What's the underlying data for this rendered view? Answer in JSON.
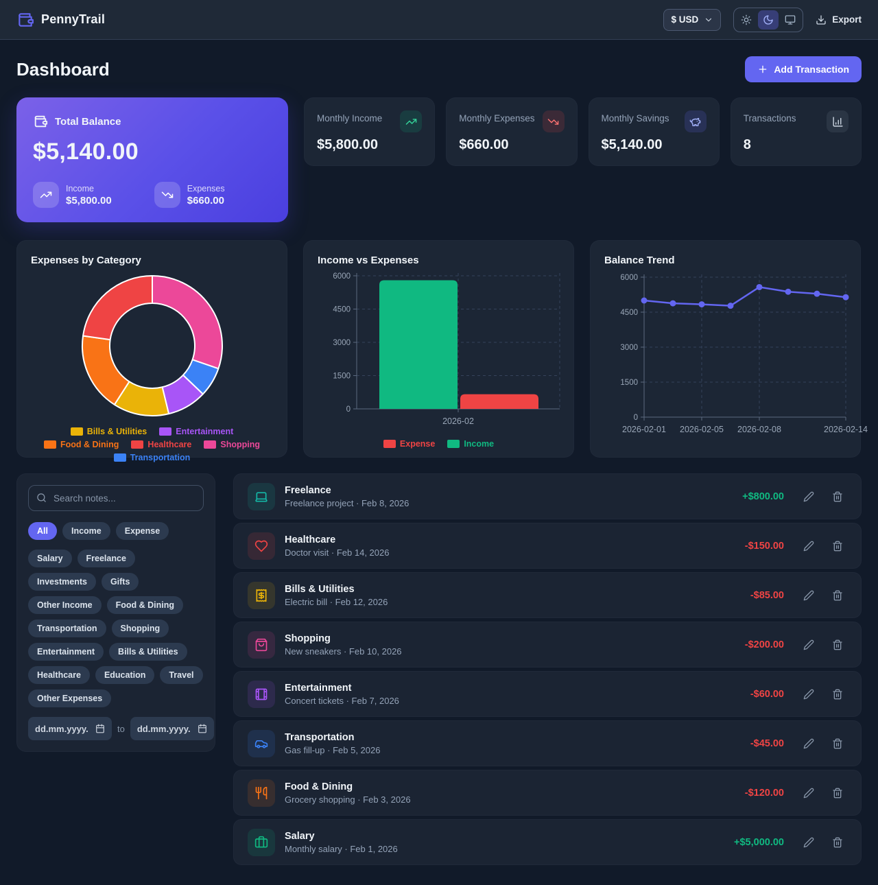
{
  "theme": {
    "accent": "#6366f1",
    "positive": "#10b981",
    "negative": "#ef4444"
  },
  "app": {
    "name": "PennyTrail",
    "logo_icon": "wallet-icon"
  },
  "header": {
    "currency": {
      "value": "$ USD",
      "icon": "chevron-down-icon"
    },
    "theme_toggle": [
      {
        "name": "light",
        "icon": "sun-icon",
        "active": false
      },
      {
        "name": "dark",
        "icon": "moon-icon",
        "active": true
      },
      {
        "name": "system",
        "icon": "monitor-icon",
        "active": false
      }
    ],
    "export_label": "Export",
    "export_icon": "download-icon"
  },
  "page": {
    "title": "Dashboard",
    "add_transaction_label": "Add Transaction",
    "add_icon": "plus-icon"
  },
  "balance_card": {
    "icon": "wallet-icon",
    "title": "Total Balance",
    "value": "$5,140.00",
    "income_label": "Income",
    "income_value": "$5,800.00",
    "income_icon": "trending-up-icon",
    "expenses_label": "Expenses",
    "expenses_value": "$660.00",
    "expenses_icon": "trending-down-icon"
  },
  "stat_cards": [
    {
      "label": "Monthly Income",
      "value": "$5,800.00",
      "icon": "trending-up-icon",
      "accent": "#34d399",
      "tile_bg": "rgba(16,185,129,0.15)"
    },
    {
      "label": "Monthly Expenses",
      "value": "$660.00",
      "icon": "trending-down-icon",
      "accent": "#f87171",
      "tile_bg": "rgba(239,68,68,0.15)"
    },
    {
      "label": "Monthly Savings",
      "value": "$5,140.00",
      "icon": "piggy-bank-icon",
      "accent": "#a5b4fc",
      "tile_bg": "rgba(99,102,241,0.18)"
    },
    {
      "label": "Transactions",
      "value": "8",
      "icon": "chart-column-icon",
      "accent": "#cbd5e1",
      "tile_bg": "rgba(148,163,184,0.12)"
    }
  ],
  "chart_data": [
    {
      "type": "pie",
      "style": "doughnut",
      "title": "Expenses by Category",
      "start_angle_deg": 0,
      "slices": [
        {
          "label": "Shopping",
          "value": 200,
          "color": "#ec4899"
        },
        {
          "label": "Transportation",
          "value": 45,
          "color": "#3b82f6"
        },
        {
          "label": "Entertainment",
          "value": 60,
          "color": "#a855f7"
        },
        {
          "label": "Bills & Utilities",
          "value": 85,
          "color": "#eab308"
        },
        {
          "label": "Food & Dining",
          "value": 120,
          "color": "#f97316"
        },
        {
          "label": "Healthcare",
          "value": 150,
          "color": "#ef4444"
        }
      ],
      "legend_order": [
        "Bills & Utilities",
        "Entertainment",
        "Food & Dining",
        "Healthcare",
        "Shopping",
        "Transportation"
      ],
      "legend_position": "bottom"
    },
    {
      "type": "bar",
      "title": "Income vs Expenses",
      "categories": [
        "2026-02"
      ],
      "series": [
        {
          "name": "Income",
          "values": [
            5800
          ],
          "color": "#10b981"
        },
        {
          "name": "Expense",
          "values": [
            660
          ],
          "color": "#ef4444"
        }
      ],
      "bar_order": [
        "Income",
        "Expense"
      ],
      "legend_order": [
        "Expense",
        "Income"
      ],
      "ylim": [
        0,
        6000
      ],
      "yticks": [
        0,
        1500,
        3000,
        4500,
        6000
      ],
      "grid": "dashed",
      "legend_position": "bottom"
    },
    {
      "type": "line",
      "title": "Balance Trend",
      "x": [
        "2026-02-01",
        "2026-02-03",
        "2026-02-05",
        "2026-02-07",
        "2026-02-08",
        "2026-02-10",
        "2026-02-12",
        "2026-02-14"
      ],
      "values": [
        5000,
        4880,
        4835,
        4775,
        5575,
        5375,
        5290,
        5140
      ],
      "xtick_indices": [
        0,
        2,
        4,
        7
      ],
      "xtick_labels": [
        "2026-02-01",
        "2026-02-05",
        "2026-02-08",
        "2026-02-14"
      ],
      "color": "#6366f1",
      "ylim": [
        0,
        6000
      ],
      "yticks": [
        0,
        1500,
        3000,
        4500,
        6000
      ],
      "grid": "dashed",
      "legend_position": "none"
    }
  ],
  "filters": {
    "search_placeholder": "Search notes...",
    "search_icon": "search-icon",
    "type_chips": [
      {
        "label": "All",
        "active": true
      },
      {
        "label": "Income",
        "active": false
      },
      {
        "label": "Expense",
        "active": false
      }
    ],
    "category_chips": [
      "Salary",
      "Freelance",
      "Investments",
      "Gifts",
      "Other Income",
      "Food & Dining",
      "Transportation",
      "Shopping",
      "Entertainment",
      "Bills & Utilities",
      "Healthcare",
      "Education",
      "Travel",
      "Other Expenses"
    ],
    "date_from_placeholder": "dd.mm.yyyy.",
    "date_to_placeholder": "dd.mm.yyyy.",
    "date_icon": "calendar-icon",
    "range_separator": "to"
  },
  "transactions": {
    "row_actions": [
      {
        "name": "edit",
        "icon": "pencil-icon"
      },
      {
        "name": "delete",
        "icon": "trash-icon"
      }
    ],
    "items": [
      {
        "category": "Freelance",
        "note": "Freelance project",
        "date": "Feb 8, 2026",
        "amount": "+$800.00",
        "positive": true,
        "icon": "laptop-icon",
        "color": "#14b8a6"
      },
      {
        "category": "Healthcare",
        "note": "Doctor visit",
        "date": "Feb 14, 2026",
        "amount": "-$150.00",
        "positive": false,
        "icon": "heart-icon",
        "color": "#ef4444"
      },
      {
        "category": "Bills & Utilities",
        "note": "Electric bill",
        "date": "Feb 12, 2026",
        "amount": "-$85.00",
        "positive": false,
        "icon": "receipt-icon",
        "color": "#eab308"
      },
      {
        "category": "Shopping",
        "note": "New sneakers",
        "date": "Feb 10, 2026",
        "amount": "-$200.00",
        "positive": false,
        "icon": "shopping-bag-icon",
        "color": "#ec4899"
      },
      {
        "category": "Entertainment",
        "note": "Concert tickets",
        "date": "Feb 7, 2026",
        "amount": "-$60.00",
        "positive": false,
        "icon": "film-icon",
        "color": "#a855f7"
      },
      {
        "category": "Transportation",
        "note": "Gas fill-up",
        "date": "Feb 5, 2026",
        "amount": "-$45.00",
        "positive": false,
        "icon": "car-icon",
        "color": "#3b82f6"
      },
      {
        "category": "Food & Dining",
        "note": "Grocery shopping",
        "date": "Feb 3, 2026",
        "amount": "-$120.00",
        "positive": false,
        "icon": "utensils-icon",
        "color": "#f97316"
      },
      {
        "category": "Salary",
        "note": "Monthly salary",
        "date": "Feb 1, 2026",
        "amount": "+$5,000.00",
        "positive": true,
        "icon": "briefcase-icon",
        "color": "#10b981"
      }
    ]
  }
}
